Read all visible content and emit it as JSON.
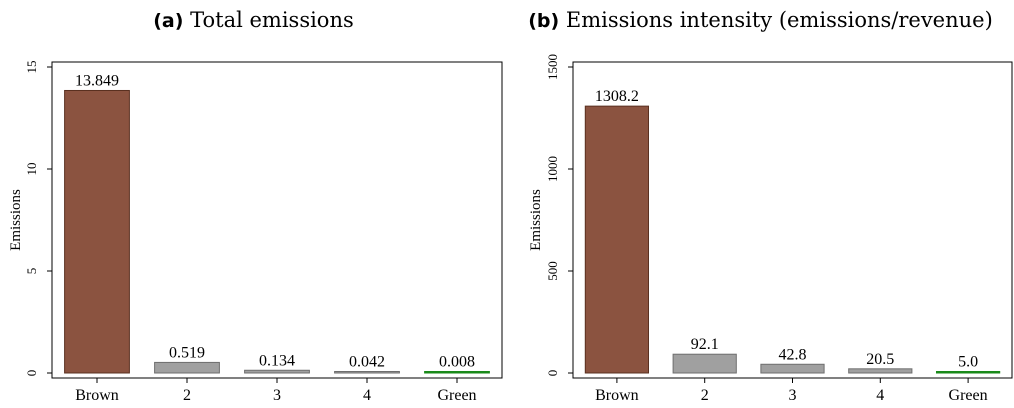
{
  "chart_data": [
    {
      "type": "bar",
      "panel_label": "(a)",
      "title": "Total emissions",
      "ylabel": "Emissions",
      "xlabel": "",
      "categories": [
        "Brown",
        "2",
        "3",
        "4",
        "Green"
      ],
      "values": [
        13.849,
        0.519,
        0.134,
        0.042,
        0.008
      ],
      "value_labels": [
        "13.849",
        "0.519",
        "0.134",
        "0.042",
        "0.008"
      ],
      "yticks": [
        0,
        5,
        10,
        15
      ],
      "ytick_labels": [
        "0",
        "5",
        "10",
        "15"
      ],
      "ylim": [
        0,
        15
      ],
      "grid": false,
      "colors": {
        "Brown": "#8b5340",
        "2": "#a0a0a0",
        "3": "#a0a0a0",
        "4": "#a0a0a0",
        "Green": "#1a8a1a"
      }
    },
    {
      "type": "bar",
      "panel_label": "(b)",
      "title": "Emissions intensity (emissions/revenue)",
      "ylabel": "Emissions",
      "xlabel": "",
      "categories": [
        "Brown",
        "2",
        "3",
        "4",
        "Green"
      ],
      "values": [
        1308.2,
        92.1,
        42.8,
        20.5,
        5.0
      ],
      "value_labels": [
        "1308.2",
        "92.1",
        "42.8",
        "20.5",
        "5.0"
      ],
      "yticks": [
        0,
        500,
        1000,
        1500
      ],
      "ytick_labels": [
        "0",
        "500",
        "1000",
        "1500"
      ],
      "ylim": [
        0,
        1500
      ],
      "grid": false,
      "colors": {
        "Brown": "#8b5340",
        "2": "#a0a0a0",
        "3": "#a0a0a0",
        "4": "#a0a0a0",
        "Green": "#1a8a1a"
      }
    }
  ]
}
